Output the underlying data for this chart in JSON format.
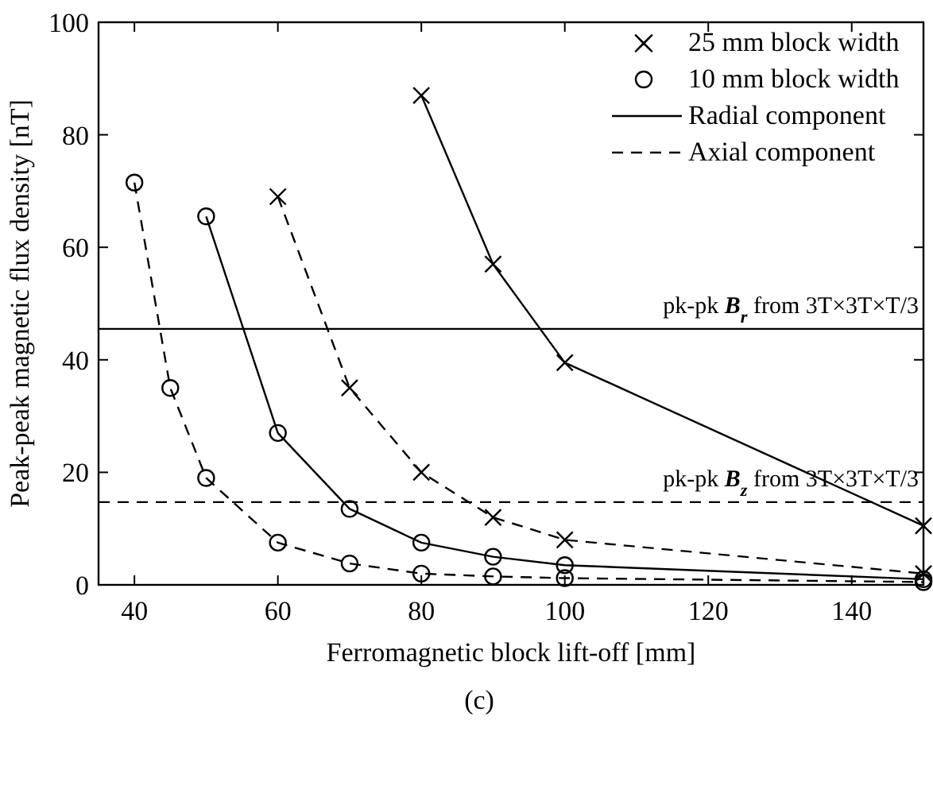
{
  "chart_data": {
    "type": "line",
    "xlabel": "Ferromagnetic block lift-off [mm]",
    "ylabel": "Peak-peak magnetic flux density [nT]",
    "xlim": [
      35,
      150
    ],
    "xticks": [
      40,
      60,
      80,
      100,
      120,
      140
    ],
    "ylim": [
      0,
      100
    ],
    "yticks": [
      0,
      20,
      40,
      60,
      80,
      100
    ],
    "grid": false,
    "series": [
      {
        "color": "#000000",
        "marker": "cross",
        "line_style": "solid",
        "x": [
          80,
          90,
          100,
          150
        ],
        "values": [
          87,
          57,
          39.5,
          10.5
        ]
      },
      {
        "color": "#000000",
        "marker": "cross",
        "line_style": "dashed",
        "x": [
          60,
          70,
          80,
          90,
          100,
          150
        ],
        "values": [
          69,
          35,
          20,
          12,
          8,
          2
        ]
      },
      {
        "color": "#000000",
        "marker": "circle",
        "line_style": "solid",
        "x": [
          50,
          60,
          70,
          80,
          90,
          100,
          150
        ],
        "values": [
          65.5,
          27,
          13.5,
          7.5,
          5,
          3.5,
          1
        ]
      },
      {
        "color": "#000000",
        "marker": "circle",
        "line_style": "dashed",
        "x": [
          40,
          45,
          50,
          60,
          70,
          80,
          90,
          100,
          150
        ],
        "values": [
          71.5,
          35,
          19,
          7.5,
          3.8,
          2,
          1.5,
          1.2,
          0.5
        ]
      }
    ],
    "ref_lines": [
      {
        "axis": "y",
        "value": 45.5,
        "label": "pk-pk B$_{r}$ from 3T×3T×T/3",
        "color": "#000000",
        "line_style": "solid"
      },
      {
        "axis": "y",
        "value": 14.7,
        "label": "pk-pk B$_{z}$ from 3T×3T×T/3",
        "color": "#000000",
        "line_style": "dashed"
      }
    ],
    "annotations": [
      "25 mm block width",
      "10 mm block width",
      "Radial component",
      "Axial component",
      "(c)"
    ]
  }
}
